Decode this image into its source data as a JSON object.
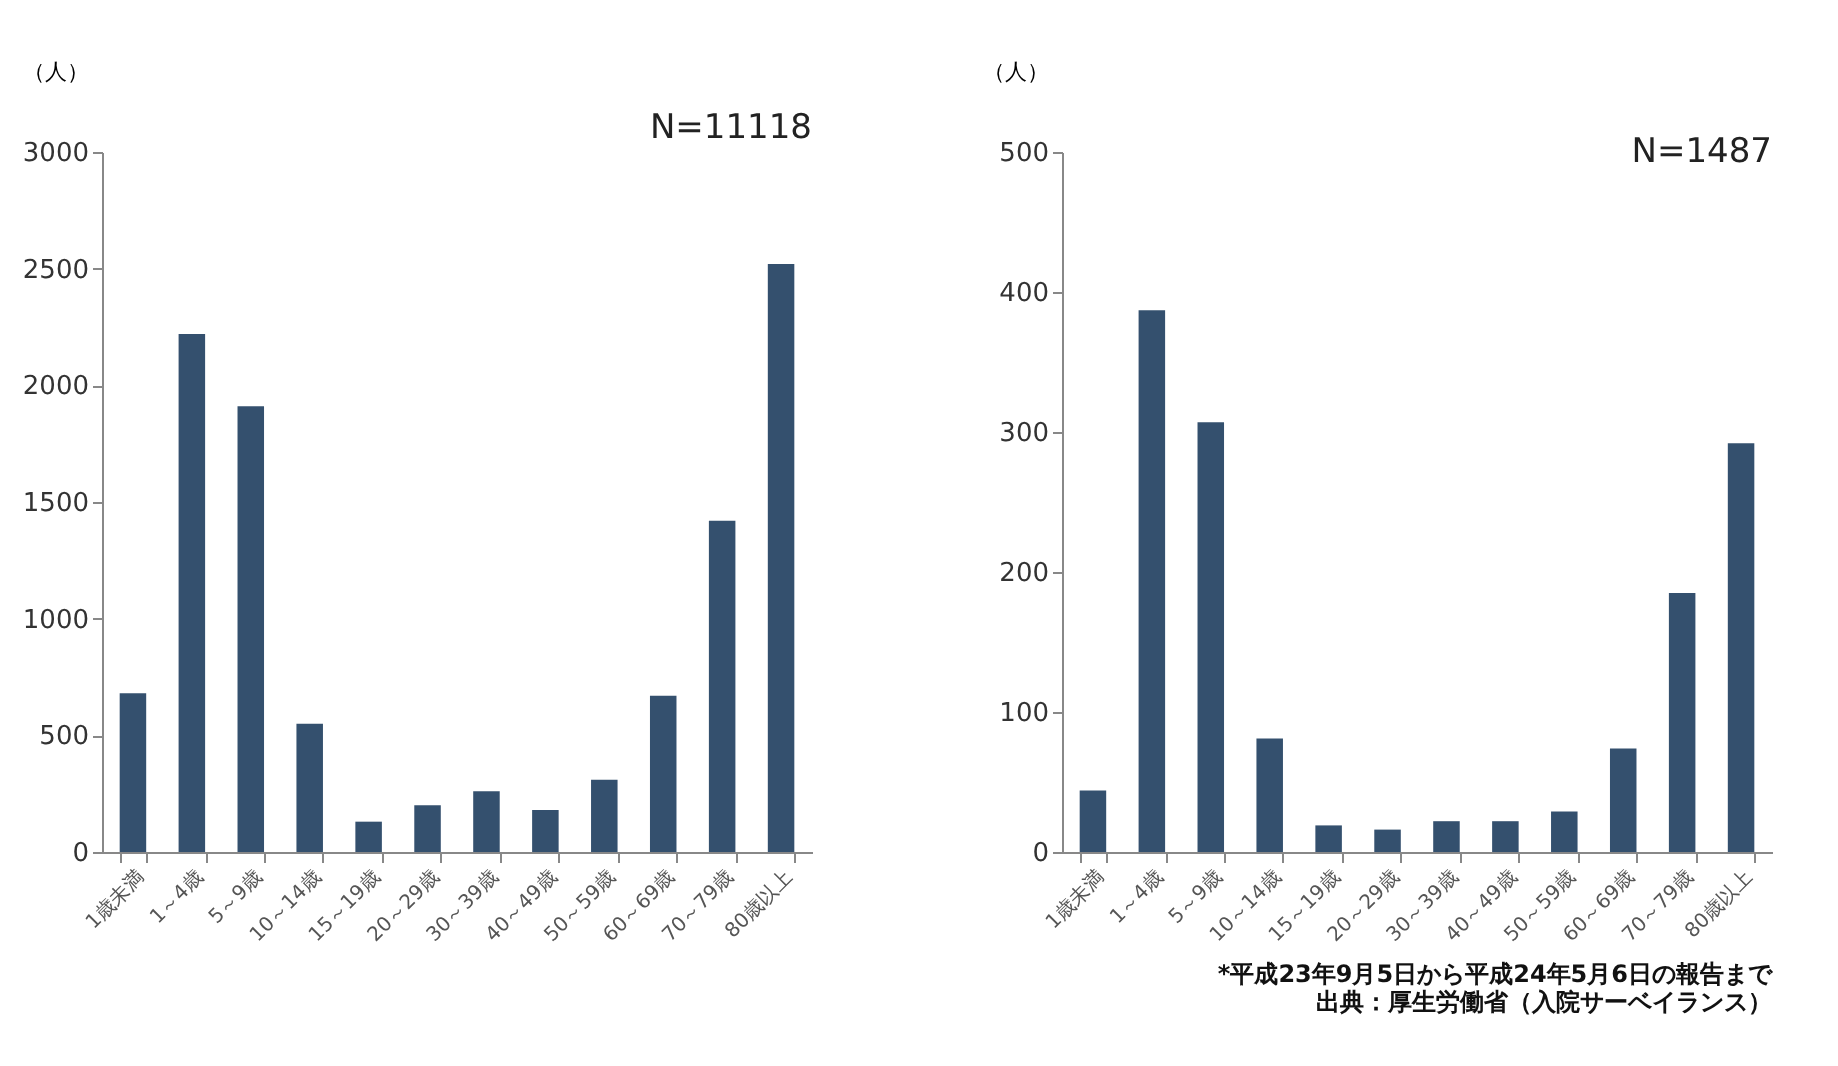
{
  "chart_data": [
    {
      "type": "bar",
      "ylabel": "（人）",
      "categories": [
        "1歳未満",
        "1～4歳",
        "5～9歳",
        "10～14歳",
        "15～19歳",
        "20～29歳",
        "30～39歳",
        "40～49歳",
        "50～59歳",
        "60～69歳",
        "70～79歳",
        "80歳以上"
      ],
      "values": [
        680,
        2220,
        1910,
        550,
        130,
        200,
        260,
        180,
        310,
        670,
        1420,
        2520
      ],
      "color": "#34506e",
      "ylim": [
        0,
        3000
      ],
      "yticks": [
        0,
        500,
        1000,
        1500,
        2000,
        2500,
        3000
      ],
      "grid": false,
      "annotations": [
        "N=11118"
      ]
    },
    {
      "type": "bar",
      "ylabel": "（人）",
      "categories": [
        "1歳未満",
        "1～4歳",
        "5～9歳",
        "10～14歳",
        "15～19歳",
        "20～29歳",
        "30～39歳",
        "40～49歳",
        "50～59歳",
        "60～69歳",
        "70～79歳",
        "80歳以上"
      ],
      "values": [
        44,
        387,
        307,
        81,
        19,
        16,
        22,
        22,
        29,
        74,
        185,
        292
      ],
      "color": "#34506e",
      "ylim": [
        0,
        500
      ],
      "yticks": [
        0,
        100,
        200,
        300,
        400,
        500
      ],
      "grid": false,
      "annotations": [
        "N=1487",
        "*平成23年9月5日から平成24年5月6日の報告まで",
        "出典：厚生労働省（入院サーベイランス）"
      ]
    }
  ]
}
